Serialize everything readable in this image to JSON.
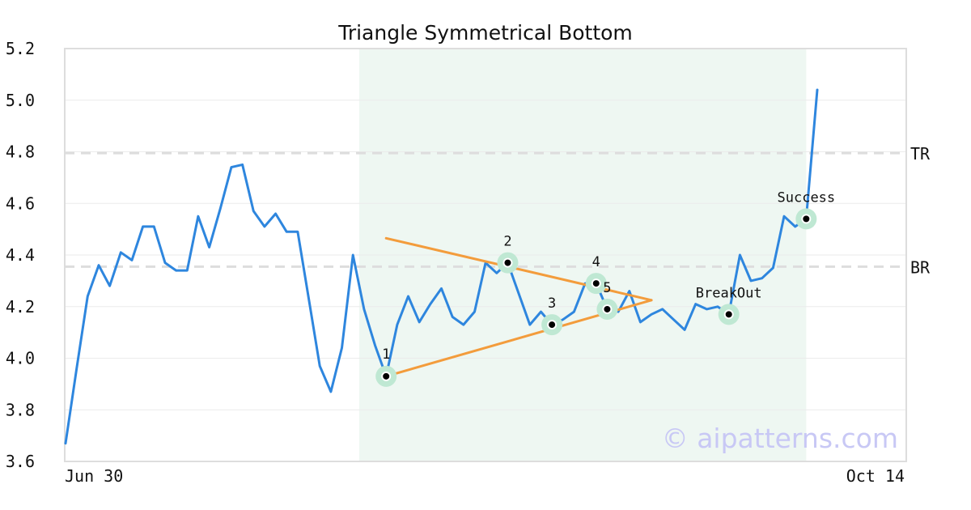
{
  "chart_data": {
    "type": "line",
    "title": "Triangle Symmetrical Bottom",
    "watermark": "© aipatterns.com",
    "x_labels": {
      "start": "Jun 30",
      "end": "Oct 14"
    },
    "ylim": [
      3.6,
      5.2
    ],
    "yticks": [
      "3.6",
      "3.8",
      "4.0",
      "4.2",
      "4.4",
      "4.6",
      "4.8",
      "5.0",
      "5.2"
    ],
    "grid": true,
    "colors": {
      "line": "#2e86de",
      "triangle": "#f39c3c",
      "highlight": "#eef7f2",
      "point_halo": "#bfe8d3",
      "hline": "#dddddd"
    },
    "series": [
      {
        "values": [
          3.67,
          3.96,
          4.24,
          4.36,
          4.28,
          4.41,
          4.38,
          4.51,
          4.51,
          4.37,
          4.34,
          4.34,
          4.55,
          4.43,
          4.58,
          4.74,
          4.75,
          4.57,
          4.51,
          4.56,
          4.49,
          4.49,
          4.23,
          3.97,
          3.87,
          4.04,
          4.4,
          4.19,
          4.05,
          3.93,
          4.13,
          4.24,
          4.14,
          4.21,
          4.27,
          4.16,
          4.13,
          4.18,
          4.37,
          4.33,
          4.37,
          4.25,
          4.13,
          4.18,
          4.13,
          4.15,
          4.18,
          4.29,
          4.29,
          4.19,
          4.18,
          4.26,
          4.14,
          4.17,
          4.19,
          4.15,
          4.11,
          4.21,
          4.19,
          4.2,
          4.17,
          4.4,
          4.3,
          4.31,
          4.35,
          4.55,
          4.51,
          4.54,
          5.04
        ]
      }
    ],
    "highlight_range": {
      "from_index": 27,
      "to_index": 67
    },
    "hlines": [
      {
        "label": "TR",
        "y": 4.795
      },
      {
        "label": "BR",
        "y": 4.355
      }
    ],
    "triangle": {
      "upper": [
        {
          "x_index": 29,
          "y": 4.465
        },
        {
          "x_index": 53,
          "y": 4.225
        }
      ],
      "lower": [
        {
          "x_index": 29,
          "y": 3.93
        },
        {
          "x_index": 53,
          "y": 4.225
        }
      ]
    },
    "points": [
      {
        "label": "1",
        "x_index": 29,
        "y": 3.93
      },
      {
        "label": "2",
        "x_index": 40,
        "y": 4.37
      },
      {
        "label": "3",
        "x_index": 44,
        "y": 4.13
      },
      {
        "label": "4",
        "x_index": 48,
        "y": 4.29
      },
      {
        "label": "5",
        "x_index": 49,
        "y": 4.19
      },
      {
        "label": "BreakOut",
        "x_index": 60,
        "y": 4.17
      },
      {
        "label": "Success",
        "x_index": 67,
        "y": 4.54
      }
    ]
  }
}
